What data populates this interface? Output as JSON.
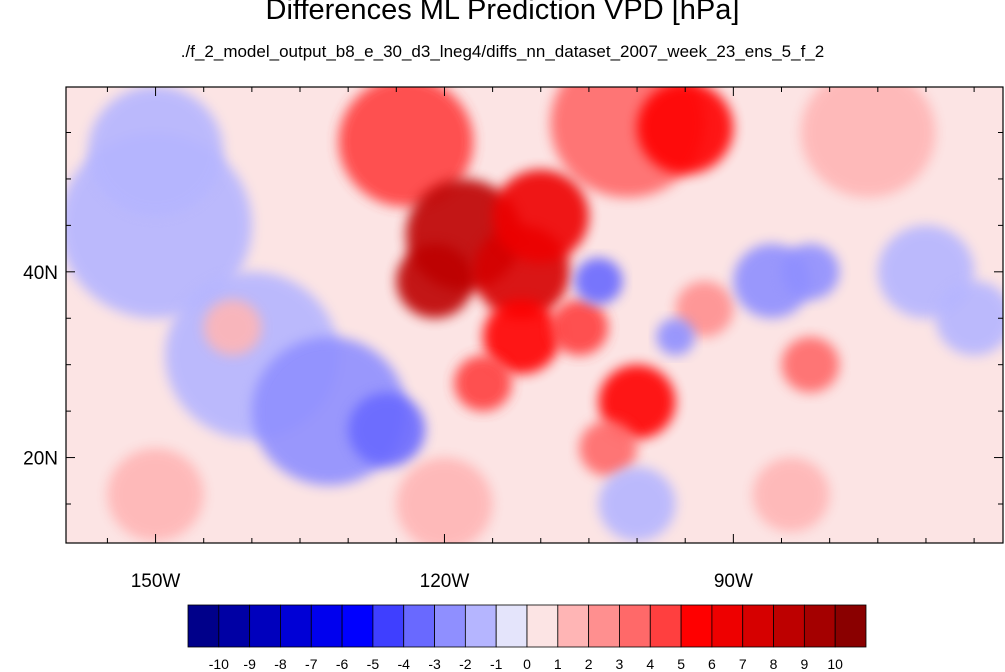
{
  "title": "Differences ML Prediction VPD [hPa]",
  "subtitle": "./f_2_model_output_b8_e_30_d3_lneg4/diffs_nn_dataset_2007_week_23_ens_5_f_2",
  "chart_data": {
    "type": "heatmap",
    "title": "Differences ML Prediction VPD [hPa]",
    "subtitle": "./f_2_model_output_b8_e_30_d3_lneg4/diffs_nn_dataset_2007_week_23_ens_5_f_2",
    "x_axis": {
      "ticks": [
        -150,
        -120,
        -90
      ],
      "labels": [
        "150W",
        "120W",
        "90W"
      ],
      "range": [
        -159.3,
        -62
      ]
    },
    "y_axis": {
      "ticks": [
        20,
        40
      ],
      "labels": [
        "20N",
        "40N"
      ],
      "range": [
        10.8,
        59.9
      ]
    },
    "colorbar": {
      "levels": [
        -10,
        -9,
        -8,
        -7,
        -6,
        -5,
        -4,
        -3,
        -2,
        -1,
        0,
        1,
        2,
        3,
        4,
        5,
        6,
        7,
        8,
        9,
        10
      ],
      "labels": [
        "-10",
        "-9",
        "-8",
        "-7",
        "-6",
        "-5",
        "-4",
        "-3",
        "-2",
        "-1",
        "0",
        "1",
        "2",
        "3",
        "4",
        "5",
        "6",
        "7",
        "8",
        "9",
        "10"
      ],
      "colors": [
        "#00008a",
        "#0000a4",
        "#0000bd",
        "#0000d6",
        "#0000ee",
        "#0000ff",
        "#3f3fff",
        "#6969ff",
        "#8f8fff",
        "#b5b5ff",
        "#e4e4fb",
        "#fce4e4",
        "#ffb5b5",
        "#ff8f8f",
        "#ff6969",
        "#ff3f3f",
        "#ff0000",
        "#ee0000",
        "#d60000",
        "#bd0000",
        "#a40000",
        "#8a0000"
      ]
    },
    "regions": [
      {
        "lon": -124,
        "lat": 54,
        "r": 7,
        "value": 4
      },
      {
        "lon": -101,
        "lat": 56,
        "r": 8,
        "value": 3
      },
      {
        "lon": -95,
        "lat": 55.5,
        "r": 5,
        "value": 5
      },
      {
        "lon": -76,
        "lat": 55,
        "r": 7,
        "value": 1
      },
      {
        "lon": -118,
        "lat": 44,
        "r": 6,
        "value": 8
      },
      {
        "lon": -121,
        "lat": 39,
        "r": 4,
        "value": 8
      },
      {
        "lon": -112,
        "lat": 40,
        "r": 5,
        "value": 7
      },
      {
        "lon": -110,
        "lat": 46,
        "r": 5,
        "value": 6
      },
      {
        "lon": -112,
        "lat": 33,
        "r": 4,
        "value": 5
      },
      {
        "lon": -106,
        "lat": 34,
        "r": 3,
        "value": 4
      },
      {
        "lon": -116,
        "lat": 28,
        "r": 3,
        "value": 4
      },
      {
        "lon": -100,
        "lat": 26,
        "r": 4,
        "value": 5
      },
      {
        "lon": -103,
        "lat": 21,
        "r": 3,
        "value": 3
      },
      {
        "lon": -82,
        "lat": 30,
        "r": 3,
        "value": 3
      },
      {
        "lon": -93,
        "lat": 36,
        "r": 3,
        "value": 2
      },
      {
        "lon": -104,
        "lat": 39,
        "r": 2.5,
        "value": -4
      },
      {
        "lon": -96,
        "lat": 33,
        "r": 2,
        "value": -3
      },
      {
        "lon": -86,
        "lat": 39,
        "r": 4,
        "value": -3
      },
      {
        "lon": -82,
        "lat": 40,
        "r": 3,
        "value": -3
      },
      {
        "lon": -70,
        "lat": 40,
        "r": 5,
        "value": -2
      },
      {
        "lon": -65,
        "lat": 35,
        "r": 4,
        "value": -2
      },
      {
        "lon": -150,
        "lat": 45,
        "r": 10,
        "value": -2
      },
      {
        "lon": -150,
        "lat": 53,
        "r": 7,
        "value": -2
      },
      {
        "lon": -140,
        "lat": 31,
        "r": 9,
        "value": -2
      },
      {
        "lon": -132,
        "lat": 25,
        "r": 8,
        "value": -3
      },
      {
        "lon": -126,
        "lat": 23,
        "r": 4,
        "value": -4
      },
      {
        "lon": -142,
        "lat": 34,
        "r": 3,
        "value": 1
      },
      {
        "lon": -120,
        "lat": 15,
        "r": 5,
        "value": 1
      },
      {
        "lon": -150,
        "lat": 16,
        "r": 5,
        "value": 1
      },
      {
        "lon": -100,
        "lat": 15,
        "r": 4,
        "value": -2
      },
      {
        "lon": -84,
        "lat": 16,
        "r": 4,
        "value": 1
      }
    ]
  }
}
